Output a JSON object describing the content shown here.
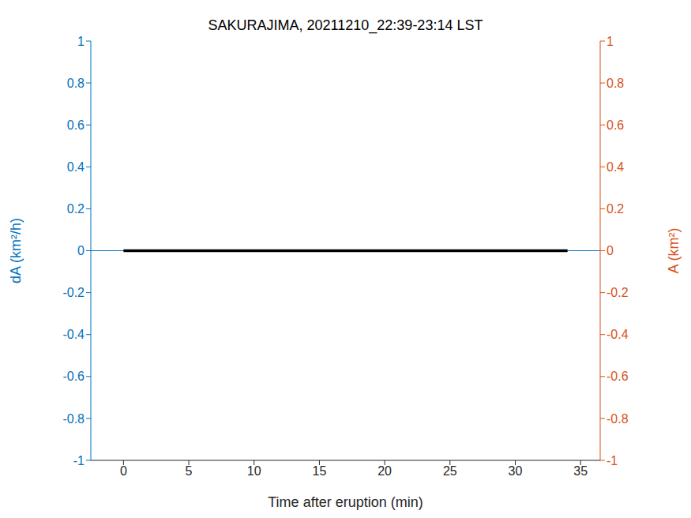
{
  "chart_data": {
    "type": "line",
    "title": "SAKURAJIMA, 20211210_22:39-23:14 LST",
    "x_label": "Time after eruption (min)",
    "y_label": "dA (km²/h)",
    "y2_label": "A (km²)",
    "xlim": [
      -2.5,
      36.5
    ],
    "xticks": [
      0,
      5,
      10,
      15,
      20,
      25,
      30,
      35
    ],
    "ylim": [
      -1,
      1
    ],
    "yticks": [
      -1,
      -0.8,
      -0.6,
      -0.4,
      -0.2,
      0,
      0.2,
      0.4,
      0.6,
      0.8,
      1
    ],
    "y2lim": [
      -1,
      1
    ],
    "y2ticks": [
      -1,
      -0.8,
      -0.6,
      -0.4,
      -0.2,
      0,
      0.2,
      0.4,
      0.6,
      0.8,
      1
    ],
    "grid": false,
    "series": [
      {
        "color": "#0072bd",
        "x": [
          -2.5,
          36.5
        ],
        "values": [
          0,
          0
        ],
        "axis": "y"
      },
      {
        "color": "#000000",
        "x": [
          0,
          34
        ],
        "values": [
          0,
          0
        ],
        "axis": "y"
      }
    ]
  }
}
